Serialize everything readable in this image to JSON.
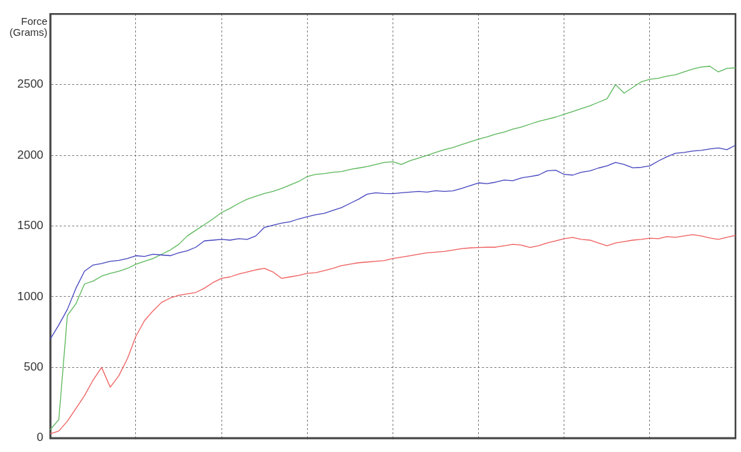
{
  "chart_data": {
    "type": "line",
    "ylabel": "Force (Grams)",
    "categories": [
      null,
      null,
      null,
      null,
      null,
      null,
      null,
      null,
      null,
      null,
      null,
      null,
      null,
      null,
      null,
      null,
      null,
      null,
      null,
      null,
      null,
      null,
      null,
      null,
      null,
      null,
      null,
      null,
      null,
      null,
      null,
      null,
      null,
      null,
      null,
      null,
      null,
      null,
      null,
      null,
      null,
      null,
      null,
      null,
      null,
      null,
      null,
      null,
      null,
      null,
      null,
      null,
      null,
      null,
      null,
      null,
      null,
      null,
      null,
      null,
      null,
      null,
      null,
      null,
      null,
      null,
      null,
      null,
      null,
      null,
      null,
      null,
      null,
      null,
      null,
      null,
      null,
      null,
      null,
      null,
      null
    ],
    "ylim": [
      0,
      3000
    ],
    "yticks": [
      0,
      500,
      1000,
      1500,
      2000,
      2500
    ],
    "tick_labels": "y",
    "grid": true,
    "legend": false,
    "marker": "none",
    "line_style": "solid",
    "series": [
      {
        "color": "#4848c0",
        "values": [
          700,
          800,
          910,
          1060,
          1180,
          1224,
          1235,
          1250,
          1257,
          1270,
          1290,
          1285,
          1300,
          1295,
          1290,
          1310,
          1325,
          1350,
          1395,
          1400,
          1405,
          1400,
          1410,
          1405,
          1430,
          1490,
          1505,
          1520,
          1530,
          1550,
          1565,
          1580,
          1590,
          1610,
          1630,
          1660,
          1690,
          1725,
          1735,
          1730,
          1729,
          1735,
          1740,
          1745,
          1740,
          1750,
          1745,
          1748,
          1765,
          1785,
          1805,
          1800,
          1810,
          1825,
          1820,
          1840,
          1850,
          1860,
          1890,
          1895,
          1865,
          1860,
          1880,
          1890,
          1910,
          1925,
          1950,
          1935,
          1912,
          1915,
          1925,
          1960,
          1990,
          2014,
          2020,
          2030,
          2035,
          2045,
          2052,
          2040,
          2071
        ]
      },
      {
        "color": "#5cb85c",
        "values": [
          60,
          130,
          867,
          950,
          1090,
          1110,
          1145,
          1165,
          1180,
          1200,
          1230,
          1250,
          1270,
          1300,
          1330,
          1370,
          1430,
          1470,
          1510,
          1550,
          1595,
          1625,
          1660,
          1690,
          1710,
          1730,
          1745,
          1765,
          1790,
          1815,
          1850,
          1865,
          1870,
          1880,
          1885,
          1900,
          1910,
          1920,
          1935,
          1950,
          1955,
          1935,
          1962,
          1980,
          2000,
          2020,
          2040,
          2055,
          2075,
          2095,
          2114,
          2130,
          2150,
          2165,
          2185,
          2200,
          2220,
          2240,
          2255,
          2270,
          2290,
          2310,
          2330,
          2350,
          2375,
          2400,
          2500,
          2440,
          2480,
          2520,
          2538,
          2545,
          2560,
          2570,
          2590,
          2610,
          2625,
          2630,
          2590,
          2615,
          2619
        ]
      },
      {
        "color": "#f06060",
        "values": [
          30,
          50,
          119,
          210,
          300,
          410,
          500,
          360,
          440,
          560,
          720,
          830,
          900,
          960,
          990,
          1010,
          1020,
          1030,
          1060,
          1100,
          1130,
          1140,
          1160,
          1175,
          1190,
          1200,
          1175,
          1130,
          1140,
          1150,
          1165,
          1170,
          1185,
          1200,
          1220,
          1230,
          1240,
          1245,
          1250,
          1255,
          1270,
          1280,
          1290,
          1300,
          1310,
          1315,
          1320,
          1330,
          1340,
          1345,
          1348,
          1350,
          1350,
          1360,
          1370,
          1365,
          1348,
          1360,
          1380,
          1395,
          1410,
          1419,
          1405,
          1400,
          1380,
          1360,
          1380,
          1390,
          1400,
          1405,
          1414,
          1410,
          1425,
          1420,
          1430,
          1438,
          1430,
          1415,
          1405,
          1420,
          1433
        ]
      }
    ]
  }
}
